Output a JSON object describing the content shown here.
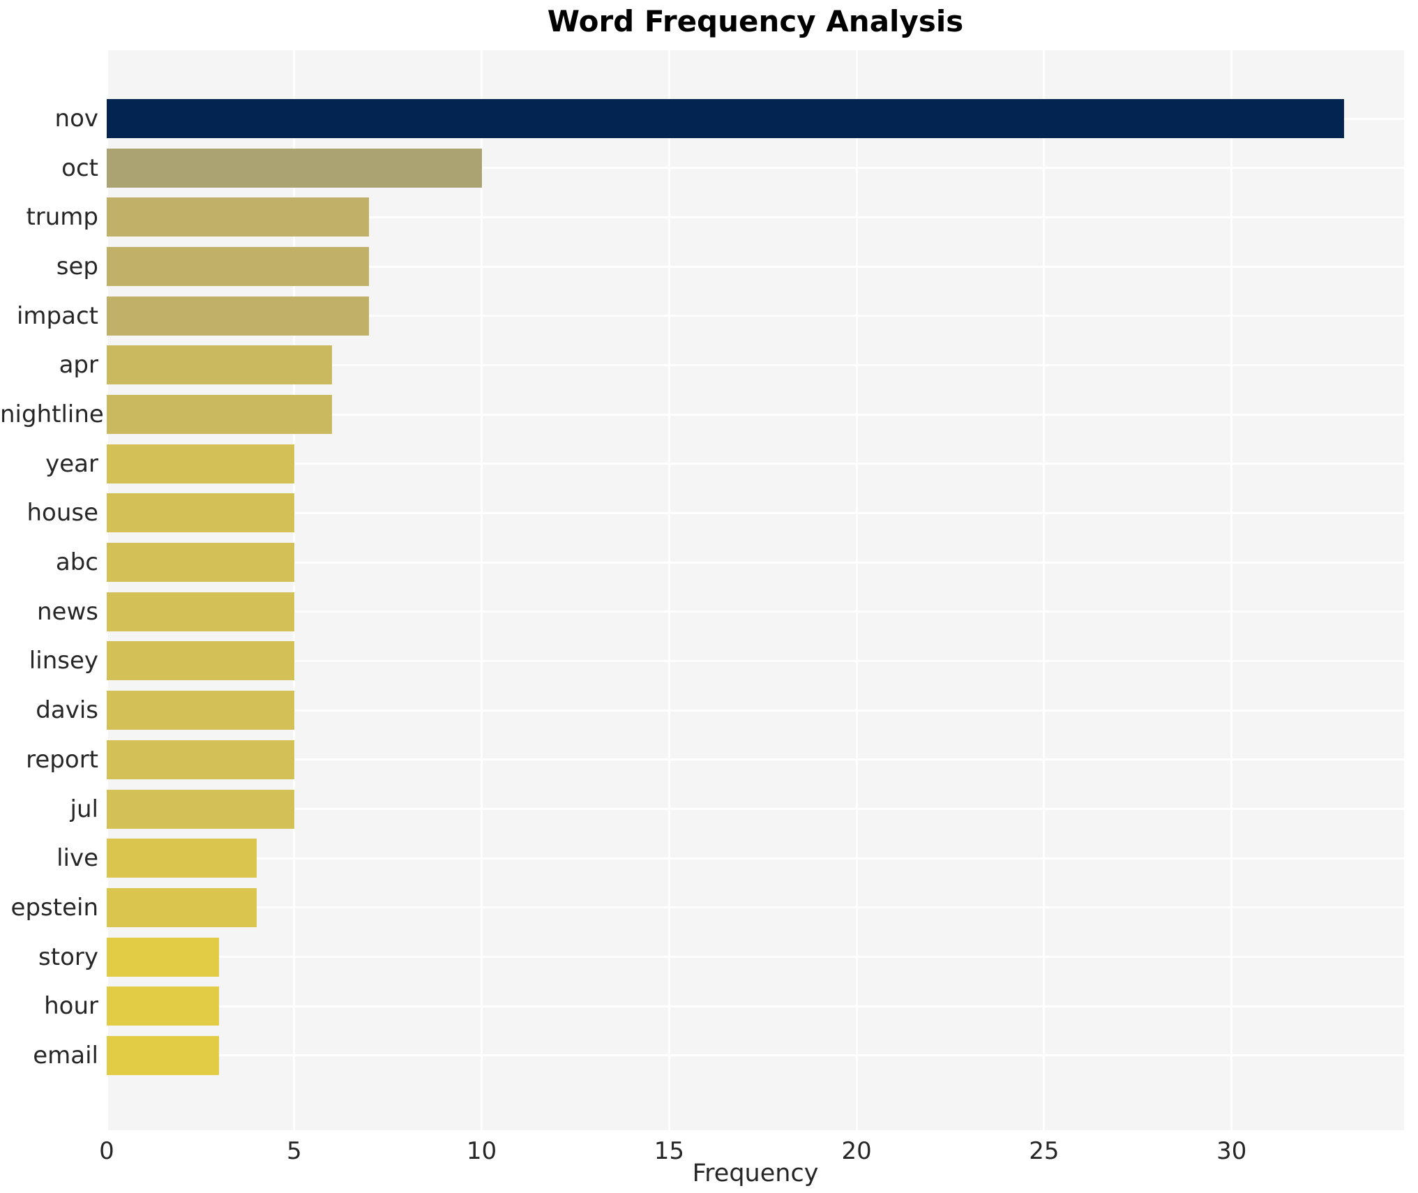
{
  "chart_data": {
    "type": "bar",
    "orientation": "horizontal",
    "title": "Word Frequency Analysis",
    "xlabel": "Frequency",
    "ylabel": "",
    "categories": [
      "nov",
      "oct",
      "trump",
      "sep",
      "impact",
      "apr",
      "nightline",
      "year",
      "house",
      "abc",
      "news",
      "linsey",
      "davis",
      "report",
      "jul",
      "live",
      "epstein",
      "story",
      "hour",
      "email"
    ],
    "values": [
      33,
      10,
      7,
      7,
      7,
      6,
      6,
      5,
      5,
      5,
      5,
      5,
      5,
      5,
      5,
      4,
      4,
      3,
      3,
      3
    ],
    "bar_colors": [
      "#032351",
      "#aca373",
      "#c1b168",
      "#c1b168",
      "#c1b168",
      "#cbb95f",
      "#cbb95f",
      "#d3c056",
      "#d3c056",
      "#d3c056",
      "#d3c056",
      "#d3c056",
      "#d3c056",
      "#d3c056",
      "#d3c056",
      "#dac64f",
      "#dac64f",
      "#e2cc46",
      "#e2cc46",
      "#e2cc46"
    ],
    "xticks": [
      0,
      5,
      10,
      15,
      20,
      25,
      30
    ],
    "xlim": [
      0,
      34.6
    ],
    "grid": true,
    "legend": null,
    "colors": {
      "plot_background": "#f5f5f6",
      "grid_line": "#ffffff",
      "tick_text": "#262626",
      "title_text": "#000000"
    }
  }
}
